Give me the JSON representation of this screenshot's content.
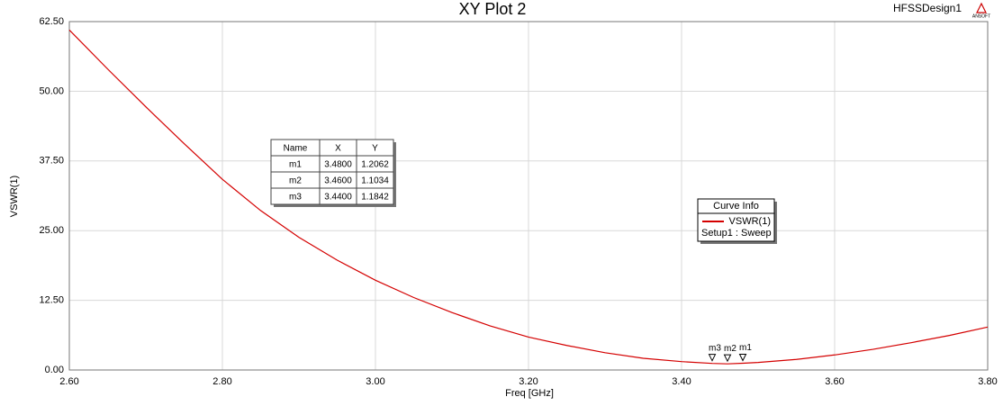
{
  "chart_data": {
    "type": "line",
    "title": "XY Plot 2",
    "design_name": "HFSSDesign1",
    "logo_text": "ANSOFT",
    "xlabel": "Freq [GHz]",
    "ylabel": "VSWR(1)",
    "xlim": [
      2.6,
      3.8
    ],
    "ylim": [
      0,
      62.5
    ],
    "xticks": [
      {
        "value": 2.6,
        "label": "2.60"
      },
      {
        "value": 2.8,
        "label": "2.80"
      },
      {
        "value": 3.0,
        "label": "3.00"
      },
      {
        "value": 3.2,
        "label": "3.20"
      },
      {
        "value": 3.4,
        "label": "3.40"
      },
      {
        "value": 3.6,
        "label": "3.60"
      },
      {
        "value": 3.8,
        "label": "3.80"
      }
    ],
    "yticks": [
      {
        "value": 0,
        "label": "0.00"
      },
      {
        "value": 12.5,
        "label": "12.50"
      },
      {
        "value": 25,
        "label": "25.00"
      },
      {
        "value": 37.5,
        "label": "37.50"
      },
      {
        "value": 50,
        "label": "50.00"
      },
      {
        "value": 62.5,
        "label": "62.50"
      }
    ],
    "grid": true,
    "x": [
      2.6,
      2.65,
      2.7,
      2.75,
      2.8,
      2.85,
      2.9,
      2.95,
      3.0,
      3.05,
      3.1,
      3.15,
      3.2,
      3.25,
      3.3,
      3.35,
      3.4,
      3.44,
      3.46,
      3.48,
      3.5,
      3.55,
      3.6,
      3.65,
      3.7,
      3.75,
      3.8
    ],
    "series": [
      {
        "name": "VSWR(1)",
        "color": "#d40000",
        "values": [
          61,
          54,
          47.2,
          40.6,
          34.2,
          28.6,
          23.8,
          19.7,
          16.1,
          13.0,
          10.3,
          7.9,
          5.9,
          4.4,
          3.1,
          2.1,
          1.5,
          1.1842,
          1.1034,
          1.2062,
          1.35,
          1.9,
          2.7,
          3.7,
          4.9,
          6.2,
          7.7
        ]
      }
    ],
    "legend_title": "Curve Info",
    "legend_subtitle": "Setup1 : Sweep",
    "marker_table_header": [
      "Name",
      "X",
      "Y"
    ],
    "markers": [
      {
        "name": "m1",
        "x": 3.48,
        "y": 1.2062,
        "x_label": "3.4800",
        "y_label": "1.2062"
      },
      {
        "name": "m2",
        "x": 3.46,
        "y": 1.1034,
        "x_label": "3.4600",
        "y_label": "1.1034"
      },
      {
        "name": "m3",
        "x": 3.44,
        "y": 1.1842,
        "x_label": "3.4400",
        "y_label": "1.1842"
      }
    ]
  }
}
